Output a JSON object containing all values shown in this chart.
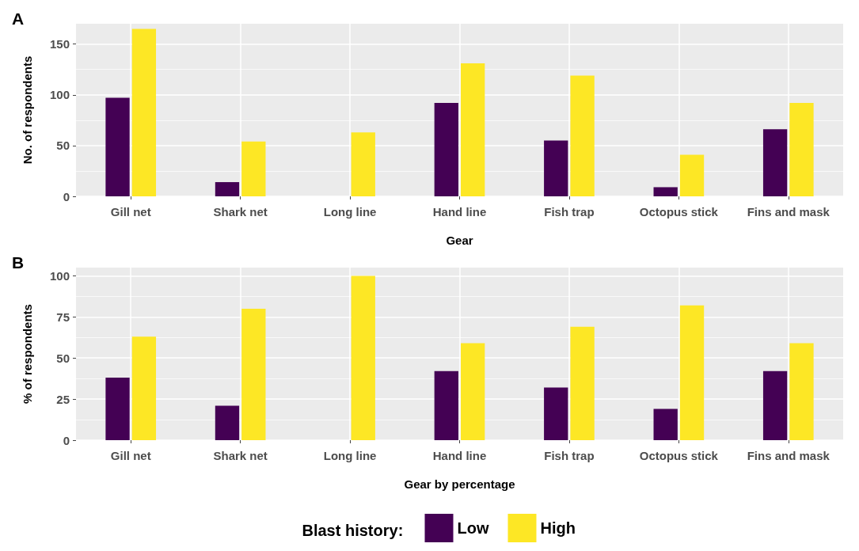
{
  "chart_data": [
    {
      "type": "bar",
      "title": "A",
      "xlabel": "Gear",
      "ylabel": "No. of respondents",
      "categories": [
        "Gill net",
        "Shark net",
        "Long line",
        "Hand line",
        "Fish trap",
        "Octopus stick",
        "Fins and mask"
      ],
      "series": [
        {
          "color": "#440154",
          "values": [
            97,
            14,
            0,
            92,
            55,
            9,
            66
          ]
        },
        {
          "color": "#fde725",
          "values": [
            165,
            54,
            63,
            131,
            119,
            41,
            92
          ]
        }
      ],
      "ylim": [
        0,
        170
      ],
      "yticks": [
        0,
        50,
        100,
        150
      ],
      "grid": true
    },
    {
      "type": "bar",
      "title": "B",
      "xlabel": "Gear by percentage",
      "ylabel": "% of respondents",
      "categories": [
        "Gill net",
        "Shark net",
        "Long line",
        "Hand line",
        "Fish trap",
        "Octopus stick",
        "Fins and mask"
      ],
      "series": [
        {
          "name": "Low",
          "color": "#440154",
          "values": [
            38,
            21,
            0,
            42,
            32,
            19,
            42
          ]
        },
        {
          "name": "High",
          "color": "#fde725",
          "values": [
            63,
            80,
            100,
            59,
            69,
            82,
            59
          ]
        }
      ],
      "ylim": [
        0,
        105
      ],
      "yticks": [
        0,
        25,
        50,
        75,
        100
      ],
      "grid": true,
      "legend": "bottom",
      "legend_title": "Blast history:"
    }
  ]
}
